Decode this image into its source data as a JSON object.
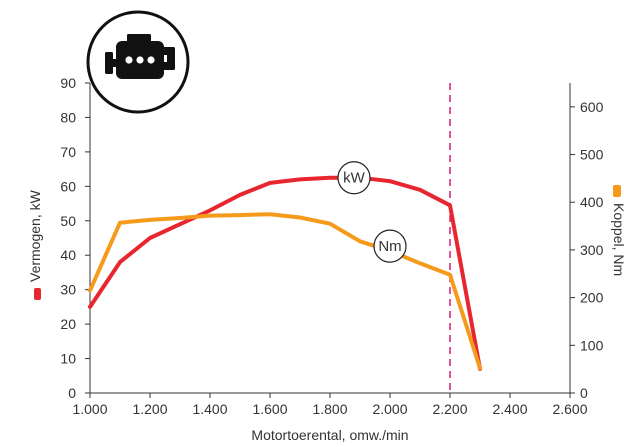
{
  "chart_data": {
    "type": "line",
    "xlabel": "Motortoerental, omw./min",
    "ylabel_left": "Vermogen, kW",
    "ylabel_right": "Koppel, Nm",
    "xlim": [
      1000,
      2600
    ],
    "ylim_left": [
      0,
      90
    ],
    "ylim_right": [
      0,
      650
    ],
    "x_ticks": [
      1000,
      1200,
      1400,
      1600,
      1800,
      2000,
      2200,
      2400,
      2600
    ],
    "x_tick_labels": [
      "1.000",
      "1.200",
      "1.400",
      "1.600",
      "1.800",
      "2.000",
      "2.200",
      "2.400",
      "2.600"
    ],
    "y_left_ticks": [
      0,
      10,
      20,
      30,
      40,
      50,
      60,
      70,
      80,
      90
    ],
    "y_left_tick_labels": [
      "0",
      "10",
      "20",
      "30",
      "40",
      "50",
      "60",
      "70",
      "80",
      "90"
    ],
    "y_right_ticks": [
      0,
      100,
      200,
      300,
      400,
      500,
      600
    ],
    "y_right_tick_labels": [
      "0",
      "100",
      "200",
      "300",
      "400",
      "500",
      "600"
    ],
    "marker_line_x": 2200,
    "series": [
      {
        "name": "kW",
        "axis": "left",
        "color": "#e8262f",
        "x": [
          1000,
          1100,
          1200,
          1300,
          1400,
          1500,
          1600,
          1700,
          1800,
          1900,
          2000,
          2100,
          2200,
          2300
        ],
        "values": [
          25,
          38,
          45,
          49,
          53,
          57.5,
          61,
          62,
          62.5,
          62.5,
          61.5,
          59,
          54.5,
          7
        ]
      },
      {
        "name": "Nm",
        "axis": "right",
        "color": "#f59a1b",
        "x": [
          1000,
          1100,
          1200,
          1300,
          1400,
          1500,
          1600,
          1700,
          1800,
          1900,
          2000,
          2100,
          2200,
          2300
        ],
        "values": [
          215,
          357,
          363,
          367,
          372,
          373,
          375,
          368,
          355,
          318,
          298,
          272,
          248,
          52
        ]
      }
    ],
    "bubbles": [
      {
        "label": "kW",
        "x": 1880,
        "value": 62.5,
        "axis": "left"
      },
      {
        "label": "Nm",
        "x": 2000,
        "value": 308,
        "axis": "right"
      }
    ]
  },
  "icon": "engine-icon",
  "colors": {
    "power": "#e8262f",
    "torque": "#f59a1b",
    "marker": "#d81b7a",
    "axis": "#333333"
  }
}
